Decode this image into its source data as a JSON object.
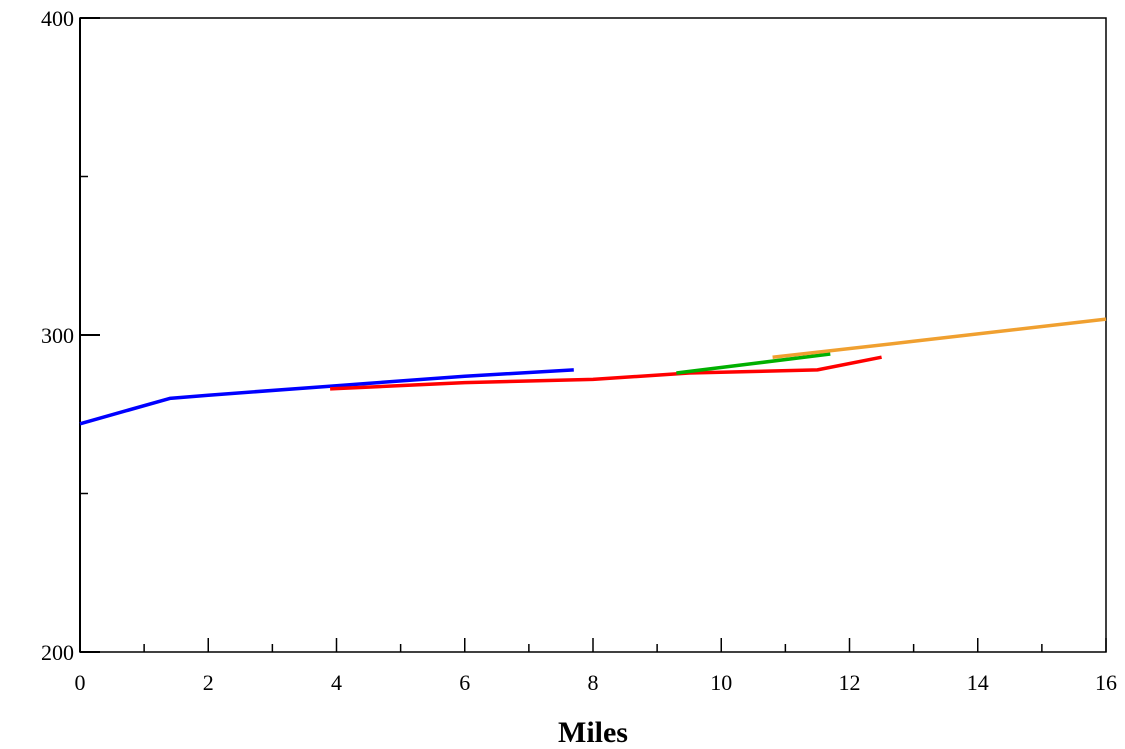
{
  "chart_data": {
    "type": "line",
    "title": "",
    "xlabel": "Miles",
    "ylabel": "",
    "xlim": [
      0,
      16
    ],
    "ylim": [
      200,
      400
    ],
    "x_ticks_labeled": [
      "0",
      "2",
      "4",
      "6",
      "8",
      "10",
      "12",
      "14",
      "16"
    ],
    "x_ticks_minor": [
      1,
      3,
      5,
      7,
      9,
      11,
      13,
      15
    ],
    "y_ticks_labeled": [
      "200",
      "300",
      "400"
    ],
    "y_ticks_minor": [
      250,
      350
    ],
    "grid": false,
    "legend": "none",
    "series": [
      {
        "color": "#0000ff",
        "x": [
          0,
          1.4,
          2.0,
          4.0,
          6.0,
          7.7
        ],
        "y": [
          272,
          280,
          281,
          284,
          287,
          289
        ]
      },
      {
        "color": "#ff0000",
        "x": [
          3.9,
          6.0,
          8.0,
          9.5,
          11.5,
          12.5
        ],
        "y": [
          283,
          285,
          286,
          288,
          289,
          293
        ]
      },
      {
        "color": "#00b000",
        "x": [
          9.3,
          10.5,
          11.7
        ],
        "y": [
          288,
          291,
          294
        ]
      },
      {
        "color": "#f0a030",
        "x": [
          10.8,
          13.0,
          16.0
        ],
        "y": [
          293,
          298,
          305
        ]
      }
    ]
  }
}
